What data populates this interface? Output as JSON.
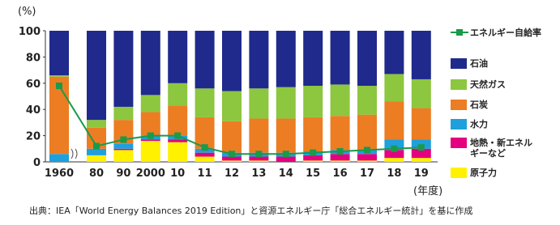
{
  "chart_data": {
    "type": "bar",
    "stacked": true,
    "y_axis_label": "(%)",
    "x_axis_label": "(年度)",
    "categories": [
      "1960",
      "80",
      "90",
      "2000",
      "10",
      "11",
      "12",
      "13",
      "14",
      "15",
      "16",
      "17",
      "18",
      "19"
    ],
    "series": [
      {
        "name": "原子力",
        "color": "#fff100",
        "values": [
          0,
          5,
          9,
          16,
          15,
          4,
          1,
          1,
          0,
          1,
          1,
          1,
          3,
          3
        ]
      },
      {
        "name": "地熱・新エネルギーなど",
        "color": "#e4007f",
        "values": [
          0,
          0,
          1,
          1,
          2,
          3,
          3,
          3,
          4,
          4,
          5,
          5,
          6,
          7
        ]
      },
      {
        "name": "水力",
        "color": "#1ea0dc",
        "values": [
          6,
          5,
          4,
          3,
          3,
          3,
          3,
          3,
          3,
          3,
          3,
          3,
          8,
          7
        ]
      },
      {
        "name": "石炭",
        "color": "#ec7d23",
        "values": [
          59,
          16,
          18,
          18,
          23,
          24,
          24,
          26,
          26,
          26,
          26,
          27,
          29,
          24
        ]
      },
      {
        "name": "天然ガス",
        "color": "#8dc63f",
        "values": [
          1,
          6,
          10,
          13,
          17,
          22,
          23,
          23,
          24,
          24,
          24,
          22,
          21,
          22
        ]
      },
      {
        "name": "石油",
        "color": "#1f2a8c",
        "values": [
          34,
          68,
          58,
          49,
          40,
          44,
          46,
          44,
          43,
          42,
          41,
          42,
          33,
          37
        ]
      }
    ],
    "line_series": {
      "name": "エネルギー自給率",
      "color": "#1a9a4a",
      "values": [
        58,
        12,
        17,
        20,
        20,
        11,
        6,
        6,
        6,
        7,
        8,
        9,
        10,
        11
      ]
    },
    "ylim": [
      0,
      100
    ],
    "yticks": [
      0,
      20,
      40,
      60,
      80,
      100
    ],
    "source": "出典：IEA「World Energy Balances 2019 Edition」と資源エネルギー庁「総合エネルギー統計」を基に作成"
  }
}
